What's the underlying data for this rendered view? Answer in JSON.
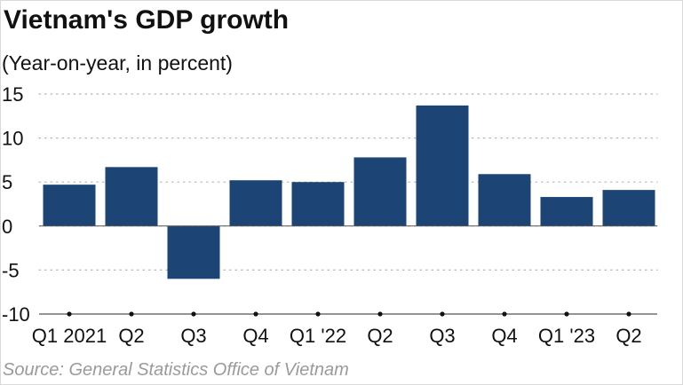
{
  "title": "Vietnam's GDP growth",
  "subtitle": "(Year-on-year, in percent)",
  "source": "Source: General Statistics Office of Vietnam",
  "colors": {
    "bar": "#1c4475",
    "grid": "#b5b5b5",
    "axis": "#555555",
    "source": "#9a9a9a"
  },
  "chart_data": {
    "type": "bar",
    "title": "Vietnam's GDP growth",
    "subtitle": "(Year-on-year, in percent)",
    "xlabel": "",
    "ylabel": "",
    "ylim": [
      -10,
      15
    ],
    "yticks": [
      15,
      10,
      5,
      0,
      -5,
      -10
    ],
    "grid": true,
    "categories": [
      "Q1 2021",
      "Q2",
      "Q3",
      "Q4",
      "Q1 '22",
      "Q2",
      "Q3",
      "Q4",
      "Q1 '23",
      "Q2"
    ],
    "values": [
      4.7,
      6.7,
      -6.0,
      5.2,
      5.0,
      7.8,
      13.7,
      5.9,
      3.3,
      4.1
    ]
  }
}
